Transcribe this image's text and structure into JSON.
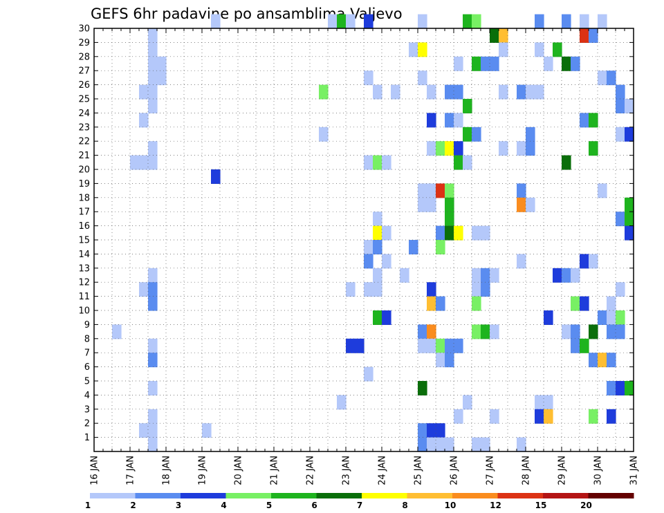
{
  "chart_data": {
    "type": "heatmap",
    "title": "GEFS 6hr padavine po ansamblima Valjevo",
    "x_tick_labels": [
      "16 JAN",
      "17 JAN",
      "18 JAN",
      "19 JAN",
      "20 JAN",
      "21 JAN",
      "22 JAN",
      "23 JAN",
      "24 JAN",
      "25 JAN",
      "26 JAN",
      "27 JAN",
      "28 JAN",
      "29 JAN",
      "30 JAN",
      "31 JAN"
    ],
    "xlim": [
      0,
      60
    ],
    "y_tick_labels": [
      "1",
      "2",
      "3",
      "4",
      "5",
      "6",
      "7",
      "8",
      "9",
      "10",
      "11",
      "12",
      "13",
      "14",
      "15",
      "16",
      "17",
      "18",
      "19",
      "20",
      "21",
      "22",
      "23",
      "24",
      "25",
      "26",
      "27",
      "28",
      "29",
      "30"
    ],
    "ylim": [
      0,
      30
    ],
    "grid": true,
    "colorbar": {
      "levels": [
        "1",
        "2",
        "3",
        "4",
        "5",
        "6",
        "7",
        "8",
        "10",
        "12",
        "15",
        "20"
      ],
      "colors": [
        "#b4c8fa",
        "#5a8cf0",
        "#1e3cdc",
        "#78f064",
        "#1eb41e",
        "#0a6e0a",
        "#ffff00",
        "#ffbe32",
        "#fa8c1e",
        "#dc3214",
        "#b41414",
        "#640000"
      ]
    },
    "cells": [
      [
        30,
        13,
        0
      ],
      [
        30,
        26,
        0
      ],
      [
        30,
        27,
        4
      ],
      [
        30,
        28,
        0
      ],
      [
        30,
        30,
        2
      ],
      [
        30,
        36,
        0
      ],
      [
        30,
        41,
        4
      ],
      [
        30,
        42,
        3
      ],
      [
        30,
        49,
        1
      ],
      [
        30,
        52,
        1
      ],
      [
        30,
        54,
        0
      ],
      [
        30,
        56,
        0
      ],
      [
        29,
        6,
        0
      ],
      [
        29,
        44,
        5
      ],
      [
        29,
        45,
        7
      ],
      [
        29,
        54,
        9
      ],
      [
        29,
        55,
        1
      ],
      [
        28,
        6,
        0
      ],
      [
        28,
        35,
        0
      ],
      [
        28,
        36,
        6
      ],
      [
        28,
        45,
        0
      ],
      [
        28,
        49,
        0
      ],
      [
        28,
        51,
        4
      ],
      [
        27,
        6,
        0
      ],
      [
        27,
        7,
        0
      ],
      [
        27,
        40,
        0
      ],
      [
        27,
        42,
        4
      ],
      [
        27,
        43,
        1
      ],
      [
        27,
        44,
        1
      ],
      [
        27,
        50,
        0
      ],
      [
        27,
        52,
        5
      ],
      [
        27,
        53,
        1
      ],
      [
        26,
        6,
        0
      ],
      [
        26,
        7,
        0
      ],
      [
        26,
        30,
        0
      ],
      [
        26,
        36,
        0
      ],
      [
        26,
        56,
        0
      ],
      [
        26,
        57,
        1
      ],
      [
        25,
        5,
        0
      ],
      [
        25,
        6,
        0
      ],
      [
        25,
        25,
        3
      ],
      [
        25,
        31,
        0
      ],
      [
        25,
        33,
        0
      ],
      [
        25,
        37,
        0
      ],
      [
        25,
        39,
        1
      ],
      [
        25,
        40,
        1
      ],
      [
        25,
        45,
        0
      ],
      [
        25,
        47,
        1
      ],
      [
        25,
        48,
        0
      ],
      [
        25,
        49,
        0
      ],
      [
        25,
        58,
        1
      ],
      [
        24,
        6,
        0
      ],
      [
        24,
        41,
        4
      ],
      [
        24,
        58,
        1
      ],
      [
        24,
        59,
        0
      ],
      [
        23,
        5,
        0
      ],
      [
        23,
        37,
        2
      ],
      [
        23,
        39,
        1
      ],
      [
        23,
        40,
        0
      ],
      [
        23,
        54,
        1
      ],
      [
        23,
        55,
        4
      ],
      [
        22,
        25,
        0
      ],
      [
        22,
        41,
        4
      ],
      [
        22,
        42,
        1
      ],
      [
        22,
        48,
        1
      ],
      [
        22,
        58,
        0
      ],
      [
        22,
        59,
        2
      ],
      [
        21,
        6,
        0
      ],
      [
        21,
        37,
        0
      ],
      [
        21,
        38,
        3
      ],
      [
        21,
        39,
        6
      ],
      [
        21,
        40,
        2
      ],
      [
        21,
        45,
        0
      ],
      [
        21,
        47,
        0
      ],
      [
        21,
        48,
        1
      ],
      [
        21,
        55,
        4
      ],
      [
        20,
        4,
        0
      ],
      [
        20,
        5,
        0
      ],
      [
        20,
        6,
        0
      ],
      [
        20,
        30,
        0
      ],
      [
        20,
        31,
        3
      ],
      [
        20,
        32,
        0
      ],
      [
        20,
        40,
        4
      ],
      [
        20,
        41,
        0
      ],
      [
        20,
        52,
        5
      ],
      [
        19,
        13,
        2
      ],
      [
        18,
        36,
        0
      ],
      [
        18,
        37,
        0
      ],
      [
        18,
        38,
        9
      ],
      [
        18,
        39,
        3
      ],
      [
        18,
        47,
        1
      ],
      [
        18,
        56,
        0
      ],
      [
        17,
        36,
        0
      ],
      [
        17,
        37,
        0
      ],
      [
        17,
        39,
        4
      ],
      [
        17,
        47,
        8
      ],
      [
        17,
        48,
        0
      ],
      [
        17,
        59,
        4
      ],
      [
        16,
        31,
        0
      ],
      [
        16,
        39,
        4
      ],
      [
        16,
        58,
        1
      ],
      [
        16,
        59,
        4
      ],
      [
        15,
        31,
        6
      ],
      [
        15,
        32,
        0
      ],
      [
        15,
        38,
        1
      ],
      [
        15,
        39,
        5
      ],
      [
        15,
        40,
        6
      ],
      [
        15,
        42,
        0
      ],
      [
        15,
        43,
        0
      ],
      [
        15,
        59,
        2
      ],
      [
        14,
        30,
        0
      ],
      [
        14,
        31,
        1
      ],
      [
        14,
        35,
        1
      ],
      [
        14,
        38,
        3
      ],
      [
        13,
        30,
        1
      ],
      [
        13,
        32,
        0
      ],
      [
        13,
        47,
        0
      ],
      [
        13,
        54,
        2
      ],
      [
        13,
        55,
        0
      ],
      [
        12,
        6,
        0
      ],
      [
        12,
        31,
        0
      ],
      [
        12,
        34,
        0
      ],
      [
        12,
        42,
        0
      ],
      [
        12,
        43,
        1
      ],
      [
        12,
        44,
        0
      ],
      [
        12,
        51,
        2
      ],
      [
        12,
        52,
        1
      ],
      [
        12,
        53,
        0
      ],
      [
        11,
        5,
        0
      ],
      [
        11,
        6,
        1
      ],
      [
        11,
        28,
        0
      ],
      [
        11,
        30,
        0
      ],
      [
        11,
        31,
        0
      ],
      [
        11,
        37,
        2
      ],
      [
        11,
        42,
        0
      ],
      [
        11,
        43,
        1
      ],
      [
        11,
        58,
        0
      ],
      [
        10,
        6,
        1
      ],
      [
        10,
        37,
        7
      ],
      [
        10,
        38,
        1
      ],
      [
        10,
        42,
        3
      ],
      [
        10,
        53,
        3
      ],
      [
        10,
        54,
        2
      ],
      [
        10,
        57,
        0
      ],
      [
        9,
        31,
        4
      ],
      [
        9,
        32,
        2
      ],
      [
        9,
        50,
        2
      ],
      [
        9,
        56,
        1
      ],
      [
        9,
        57,
        0
      ],
      [
        9,
        58,
        3
      ],
      [
        8,
        2,
        0
      ],
      [
        8,
        36,
        1
      ],
      [
        8,
        37,
        8
      ],
      [
        8,
        42,
        3
      ],
      [
        8,
        43,
        4
      ],
      [
        8,
        44,
        0
      ],
      [
        8,
        52,
        0
      ],
      [
        8,
        53,
        1
      ],
      [
        8,
        55,
        5
      ],
      [
        8,
        57,
        1
      ],
      [
        8,
        58,
        1
      ],
      [
        7,
        6,
        0
      ],
      [
        7,
        28,
        2
      ],
      [
        7,
        29,
        2
      ],
      [
        7,
        36,
        0
      ],
      [
        7,
        37,
        0
      ],
      [
        7,
        38,
        3
      ],
      [
        7,
        39,
        1
      ],
      [
        7,
        40,
        1
      ],
      [
        7,
        53,
        1
      ],
      [
        7,
        54,
        4
      ],
      [
        6,
        6,
        1
      ],
      [
        6,
        38,
        0
      ],
      [
        6,
        39,
        1
      ],
      [
        6,
        55,
        1
      ],
      [
        6,
        56,
        7
      ],
      [
        6,
        57,
        1
      ],
      [
        5,
        30,
        0
      ],
      [
        4,
        6,
        0
      ],
      [
        4,
        36,
        5
      ],
      [
        4,
        57,
        1
      ],
      [
        4,
        58,
        2
      ],
      [
        4,
        59,
        4
      ],
      [
        3,
        27,
        0
      ],
      [
        3,
        41,
        0
      ],
      [
        3,
        49,
        0
      ],
      [
        3,
        50,
        0
      ],
      [
        2,
        6,
        0
      ],
      [
        2,
        40,
        0
      ],
      [
        2,
        44,
        0
      ],
      [
        2,
        49,
        2
      ],
      [
        2,
        50,
        7
      ],
      [
        2,
        55,
        3
      ],
      [
        2,
        57,
        2
      ],
      [
        1,
        5,
        0
      ],
      [
        1,
        6,
        0
      ],
      [
        1,
        12,
        0
      ],
      [
        1,
        36,
        1
      ],
      [
        1,
        37,
        2
      ],
      [
        1,
        38,
        2
      ],
      [
        0,
        6,
        0
      ],
      [
        0,
        36,
        1
      ],
      [
        0,
        37,
        0
      ],
      [
        0,
        38,
        0
      ],
      [
        0,
        39,
        0
      ],
      [
        0,
        42,
        0
      ],
      [
        0,
        43,
        0
      ],
      [
        0,
        47,
        0
      ]
    ]
  }
}
